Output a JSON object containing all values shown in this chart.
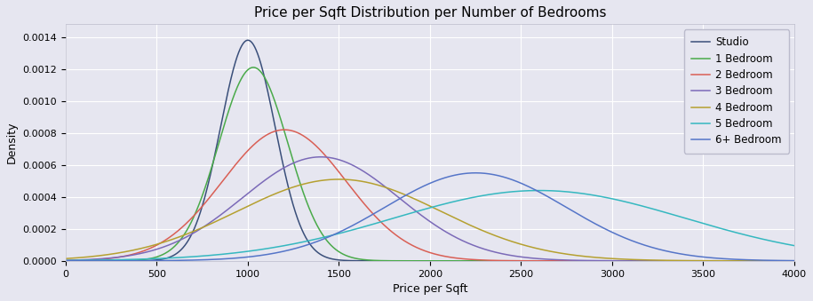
{
  "title": "Price per Sqft Distribution per Number of Bedrooms",
  "xlabel": "Price per Sqft",
  "ylabel": "Density",
  "xlim": [
    0,
    4000
  ],
  "ylim": [
    0,
    0.00148
  ],
  "background_color": "#e6e6f0",
  "grid_color": "#ffffff",
  "series": [
    {
      "label": "Studio",
      "color": "#3a4f7a",
      "mean": 1000,
      "std": 150,
      "peak": 0.00138
    },
    {
      "label": "1 Bedroom",
      "color": "#4aaa4a",
      "mean": 1030,
      "std": 190,
      "peak": 0.00121
    },
    {
      "label": "2 Bedroom",
      "color": "#d95f55",
      "mean": 1200,
      "std": 340,
      "peak": 0.00082
    },
    {
      "label": "3 Bedroom",
      "color": "#7b6ab8",
      "mean": 1400,
      "std": 430,
      "peak": 0.00065
    },
    {
      "label": "4 Bedroom",
      "color": "#b5a030",
      "mean": 1500,
      "std": 560,
      "peak": 0.00051
    },
    {
      "label": "5 Bedroom",
      "color": "#35b8c0",
      "mean": 2600,
      "std": 800,
      "peak": 0.00044
    },
    {
      "label": "6+ Bedroom",
      "color": "#5575c8",
      "mean": 2250,
      "std": 500,
      "peak": 0.00055
    }
  ],
  "title_fontsize": 11,
  "label_fontsize": 9,
  "tick_fontsize": 8,
  "legend_fontsize": 8.5,
  "figsize": [
    9.15,
    3.39
  ],
  "dpi": 100
}
